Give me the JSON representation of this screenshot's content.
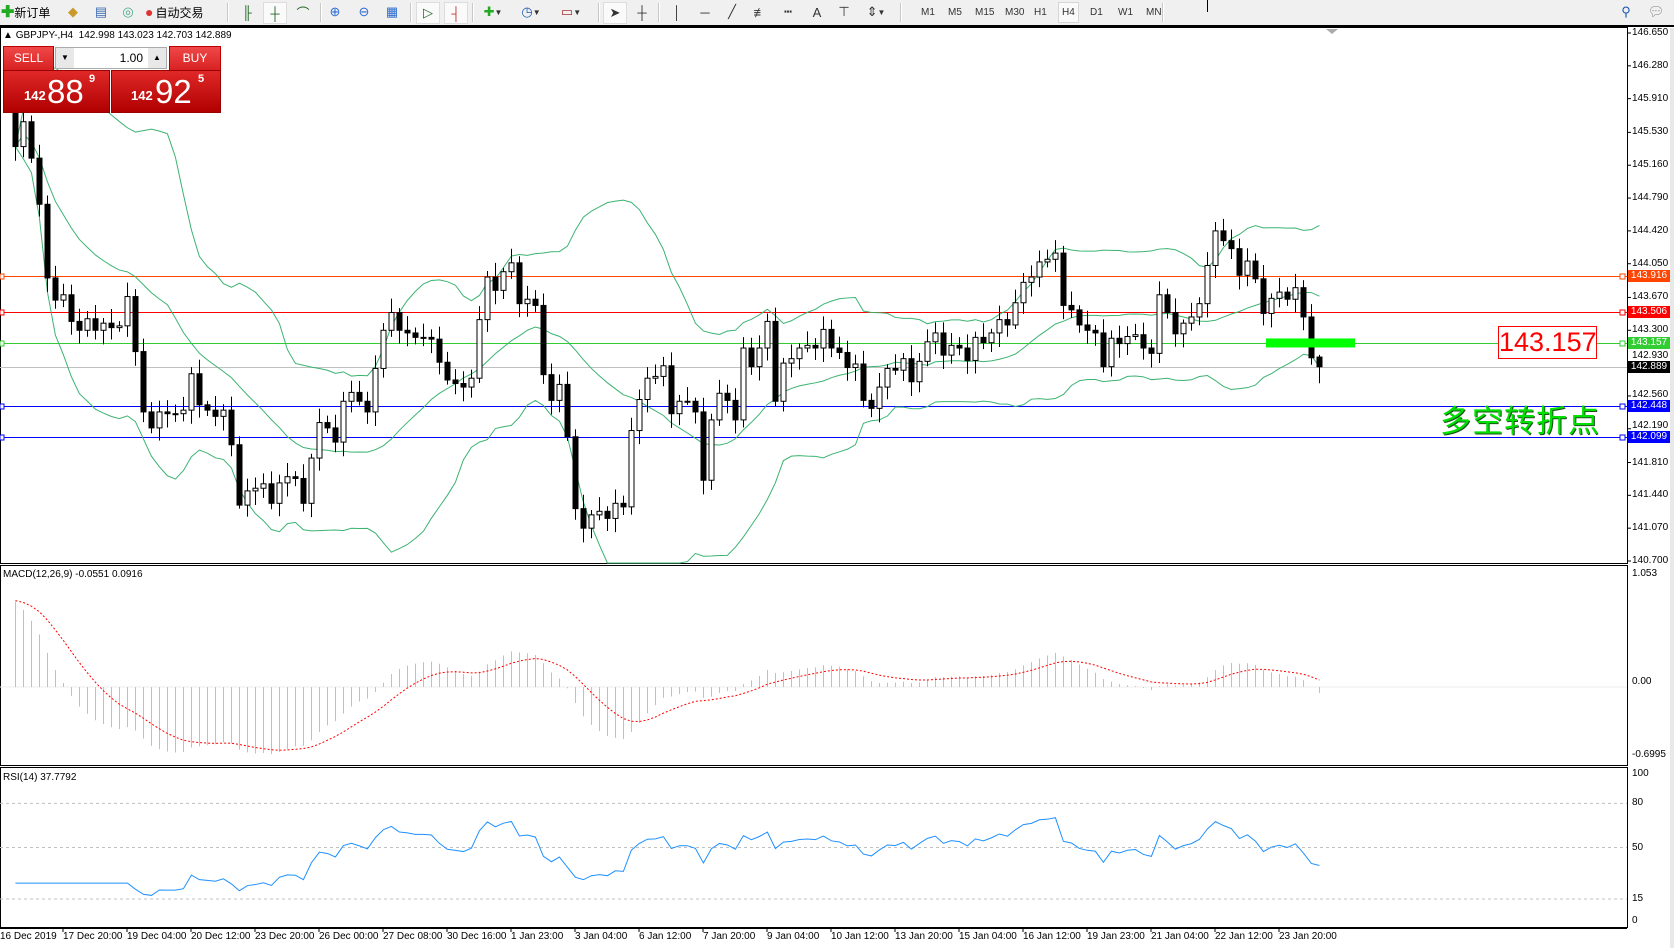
{
  "toolbar": {
    "new_order_label": "新订单",
    "auto_trading_label": "自动交易",
    "icons": [
      "new-order-icon",
      "market-watch-icon",
      "data-window-icon",
      "navigator-icon",
      "auto-trading-icon",
      "bar-chart-icon",
      "candlestick-icon",
      "line-chart-icon",
      "zoom-in-icon",
      "zoom-out-icon",
      "tile-windows-icon",
      "auto-scroll-icon",
      "chart-shift-icon",
      "indicators-icon",
      "periods-icon",
      "templates-icon",
      "cursor-icon",
      "crosshair-icon",
      "vertical-line-icon",
      "horizontal-line-icon",
      "trendline-icon",
      "fibonacci-icon",
      "fibonacci-fan-icon",
      "text-icon",
      "text-label-icon",
      "arrows-icon",
      "search-icon",
      "chat-icon"
    ],
    "timeframes": [
      "M1",
      "M5",
      "M15",
      "M30",
      "H1",
      "H4",
      "D1",
      "W1",
      "MN"
    ],
    "active_timeframe": "H4"
  },
  "chart": {
    "header": "GBPJPY-,H4  142.998 143.023 142.703 142.889",
    "trade_panel": {
      "sell_label": "SELL",
      "buy_label": "BUY",
      "lot": "1.00",
      "sell_price": {
        "prefix": "142",
        "big": "88",
        "sup": "9"
      },
      "buy_price": {
        "prefix": "142",
        "big": "92",
        "sup": "5"
      }
    },
    "price_axis": [
      "146.650",
      "146.280",
      "145.910",
      "145.530",
      "145.160",
      "144.790",
      "144.420",
      "144.050",
      "143.670",
      "143.300",
      "142.930",
      "142.560",
      "142.190",
      "141.810",
      "141.440",
      "141.070",
      "140.700"
    ],
    "levels": [
      {
        "price": 143.916,
        "label": "143.916",
        "color": "#ff4500"
      },
      {
        "price": 143.506,
        "label": "143.506",
        "color": "#ff0000"
      },
      {
        "price": 143.157,
        "label": "143.157",
        "color": "#32cd32"
      },
      {
        "price": 142.889,
        "label": "142.889",
        "color": "#000000",
        "line_color": "#c0c0c0"
      },
      {
        "price": 142.448,
        "label": "142.448",
        "color": "#0000ff"
      },
      {
        "price": 142.099,
        "label": "142.099",
        "color": "#0000ff"
      }
    ],
    "annotation_price": "143.157",
    "annotation_text": "多空转折点",
    "annotation_color": "#00e000",
    "macd_label": "MACD(12,26,9) -0.0551 0.0916",
    "macd_axis": [
      "1.053",
      "0.00",
      "-0.6995"
    ],
    "rsi_label": "RSI(14) 37.7792",
    "rsi_axis": [
      "100",
      "80",
      "50",
      "15",
      "0"
    ],
    "dates": [
      "16 Dec 2019",
      "17 Dec 20:00",
      "19 Dec 04:00",
      "20 Dec 12:00",
      "23 Dec 20:00",
      "26 Dec 00:00",
      "27 Dec 08:00",
      "30 Dec 16:00",
      "1 Jan 23:00",
      "3 Jan 04:00",
      "6 Jan 12:00",
      "7 Jan 20:00",
      "9 Jan 04:00",
      "10 Jan 12:00",
      "13 Jan 20:00",
      "15 Jan 04:00",
      "16 Jan 12:00",
      "19 Jan 23:00",
      "21 Jan 04:00",
      "22 Jan 12:00",
      "23 Jan 20:00"
    ]
  },
  "chart_data": {
    "type": "candlestick",
    "symbol": "GBPJPY-",
    "timeframe": "H4",
    "ylim": [
      140.7,
      146.65
    ],
    "first_open": 145.8,
    "last_bar": {
      "open": 142.998,
      "high": 143.023,
      "low": 142.703,
      "close": 142.889
    },
    "closes": [
      145.37,
      145.65,
      145.24,
      144.72,
      143.89,
      143.64,
      143.7,
      143.4,
      143.3,
      143.43,
      143.3,
      143.38,
      143.33,
      143.35,
      143.68,
      143.06,
      142.38,
      142.2,
      142.38,
      142.36,
      142.36,
      142.4,
      142.81,
      142.46,
      142.4,
      142.33,
      142.4,
      142.01,
      141.33,
      141.49,
      141.52,
      141.57,
      141.35,
      141.58,
      141.65,
      141.63,
      141.35,
      141.86,
      142.26,
      142.2,
      142.04,
      142.5,
      142.6,
      142.5,
      142.38,
      142.87,
      143.3,
      143.5,
      143.3,
      143.27,
      143.22,
      143.22,
      143.2,
      142.94,
      142.74,
      142.7,
      142.66,
      142.76,
      143.42,
      143.9,
      143.75,
      143.96,
      144.06,
      143.6,
      143.65,
      143.58,
      142.8,
      142.51,
      142.69,
      142.1,
      141.29,
      141.07,
      141.22,
      141.26,
      141.18,
      141.35,
      141.31,
      142.17,
      142.52,
      142.76,
      142.78,
      142.9,
      142.36,
      142.5,
      142.5,
      142.38,
      141.61,
      142.29,
      142.59,
      142.51,
      142.29,
      143.1,
      142.89,
      143.1,
      143.4,
      142.5,
      142.93,
      142.98,
      143.1,
      143.13,
      143.1,
      143.31,
      143.1,
      143.05,
      142.88,
      142.92,
      142.51,
      142.42,
      142.66,
      142.87,
      142.85,
      142.98,
      142.72,
      142.95,
      143.17,
      143.27,
      143.02,
      143.13,
      143.1,
      142.96,
      143.22,
      143.16,
      143.27,
      143.42,
      143.36,
      143.61,
      143.84,
      143.9,
      144.07,
      144.1,
      144.17,
      143.58,
      143.53,
      143.36,
      143.3,
      143.27,
      142.89,
      143.21,
      143.15,
      143.23,
      143.25,
      143.1,
      143.04,
      143.7,
      143.5,
      143.26,
      143.38,
      143.45,
      143.6,
      144.03,
      144.42,
      144.31,
      144.22,
      143.92,
      144.08,
      143.88,
      143.49,
      143.66,
      143.73,
      143.65,
      143.78,
      143.45,
      142.99,
      142.889
    ],
    "indicators": {
      "bollinger": {
        "period": 20,
        "deviation": 2,
        "color": "#3cb371"
      },
      "macd": {
        "fast": 12,
        "slow": 26,
        "signal": 9,
        "main": -0.0551,
        "signal_value": 0.0916,
        "hist_color": "#c0c0c0",
        "signal_color": "#ff0000",
        "ylim": [
          -0.6995,
          1.053
        ]
      },
      "rsi": {
        "period": 14,
        "value": 37.7792,
        "color": "#1e90ff",
        "levels": [
          80,
          50,
          15
        ],
        "ylim": [
          0,
          100
        ]
      }
    },
    "highlight_bar": {
      "price": 143.157,
      "color": "#00ff00"
    }
  }
}
